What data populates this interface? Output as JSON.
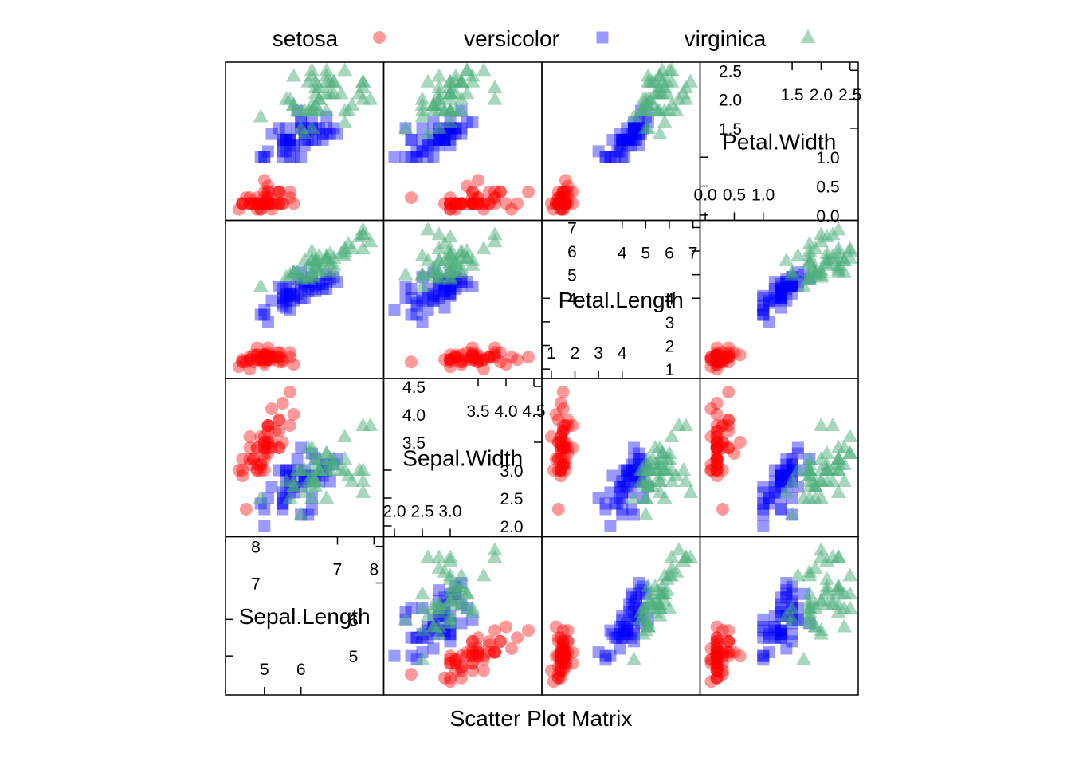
{
  "chart_data": {
    "type": "scatter",
    "subtype": "scatter-plot-matrix",
    "xlabel": "Scatter Plot Matrix",
    "variables": [
      "Sepal.Length",
      "Sepal.Width",
      "Petal.Length",
      "Petal.Width"
    ],
    "variable_ranges": {
      "Sepal.Length": [
        4.0,
        8.2
      ],
      "Sepal.Width": [
        1.85,
        4.6
      ],
      "Petal.Length": [
        0.7,
        7.2
      ],
      "Petal.Width": [
        -0.05,
        2.6
      ]
    },
    "diagonal_ticks": {
      "Sepal.Length": {
        "low": [
          5,
          6
        ],
        "high": [
          7,
          8
        ]
      },
      "Sepal.Width": {
        "low": [
          "2.0",
          "2.5",
          "3.0"
        ],
        "high": [
          "3.5",
          "4.0",
          "4.5"
        ]
      },
      "Petal.Length": {
        "low": [
          1,
          2,
          3,
          4
        ],
        "high": [
          4,
          5,
          6,
          7
        ]
      },
      "Petal.Width": {
        "low": [
          "0.0",
          "0.5",
          "1.0"
        ],
        "high": [
          "1.5",
          "2.0",
          "2.5"
        ]
      }
    },
    "legend_position": "top",
    "series": [
      {
        "name": "setosa",
        "marker": "circle",
        "color": "#ff0000",
        "opacity": 0.4,
        "points": [
          [
            5.1,
            3.5,
            1.4,
            0.2
          ],
          [
            4.9,
            3.0,
            1.4,
            0.2
          ],
          [
            4.7,
            3.2,
            1.3,
            0.2
          ],
          [
            4.6,
            3.1,
            1.5,
            0.2
          ],
          [
            5.0,
            3.6,
            1.4,
            0.2
          ],
          [
            5.4,
            3.9,
            1.7,
            0.4
          ],
          [
            4.6,
            3.4,
            1.4,
            0.3
          ],
          [
            5.0,
            3.4,
            1.5,
            0.2
          ],
          [
            4.4,
            2.9,
            1.4,
            0.2
          ],
          [
            4.9,
            3.1,
            1.5,
            0.1
          ],
          [
            5.4,
            3.7,
            1.5,
            0.2
          ],
          [
            4.8,
            3.4,
            1.6,
            0.2
          ],
          [
            4.8,
            3.0,
            1.4,
            0.1
          ],
          [
            4.3,
            3.0,
            1.1,
            0.1
          ],
          [
            5.8,
            4.0,
            1.2,
            0.2
          ],
          [
            5.7,
            4.4,
            1.5,
            0.4
          ],
          [
            5.4,
            3.9,
            1.3,
            0.4
          ],
          [
            5.1,
            3.5,
            1.4,
            0.3
          ],
          [
            5.7,
            3.8,
            1.7,
            0.3
          ],
          [
            5.1,
            3.8,
            1.5,
            0.3
          ],
          [
            5.4,
            3.4,
            1.7,
            0.2
          ],
          [
            5.1,
            3.7,
            1.5,
            0.4
          ],
          [
            4.6,
            3.6,
            1.0,
            0.2
          ],
          [
            5.1,
            3.3,
            1.7,
            0.5
          ],
          [
            4.8,
            3.4,
            1.9,
            0.2
          ],
          [
            5.0,
            3.0,
            1.6,
            0.2
          ],
          [
            5.0,
            3.4,
            1.6,
            0.4
          ],
          [
            5.2,
            3.5,
            1.5,
            0.2
          ],
          [
            5.2,
            3.4,
            1.4,
            0.2
          ],
          [
            4.7,
            3.2,
            1.6,
            0.2
          ],
          [
            4.8,
            3.1,
            1.6,
            0.2
          ],
          [
            5.4,
            3.4,
            1.5,
            0.4
          ],
          [
            5.2,
            4.1,
            1.5,
            0.1
          ],
          [
            5.5,
            4.2,
            1.4,
            0.2
          ],
          [
            4.9,
            3.1,
            1.5,
            0.2
          ],
          [
            5.0,
            3.2,
            1.2,
            0.2
          ],
          [
            5.5,
            3.5,
            1.3,
            0.2
          ],
          [
            4.9,
            3.6,
            1.4,
            0.1
          ],
          [
            4.4,
            3.0,
            1.3,
            0.2
          ],
          [
            5.1,
            3.4,
            1.5,
            0.2
          ],
          [
            5.0,
            3.5,
            1.3,
            0.3
          ],
          [
            4.5,
            2.3,
            1.3,
            0.3
          ],
          [
            4.4,
            3.2,
            1.3,
            0.2
          ],
          [
            5.0,
            3.5,
            1.6,
            0.6
          ],
          [
            5.1,
            3.8,
            1.9,
            0.4
          ],
          [
            4.8,
            3.0,
            1.4,
            0.3
          ],
          [
            5.1,
            3.8,
            1.6,
            0.2
          ],
          [
            4.6,
            3.2,
            1.4,
            0.2
          ],
          [
            5.3,
            3.7,
            1.5,
            0.2
          ],
          [
            5.0,
            3.3,
            1.4,
            0.2
          ]
        ]
      },
      {
        "name": "versicolor",
        "marker": "square",
        "color": "#0000ff",
        "opacity": 0.4,
        "points": [
          [
            7.0,
            3.2,
            4.7,
            1.4
          ],
          [
            6.4,
            3.2,
            4.5,
            1.5
          ],
          [
            6.9,
            3.1,
            4.9,
            1.5
          ],
          [
            5.5,
            2.3,
            4.0,
            1.3
          ],
          [
            6.5,
            2.8,
            4.6,
            1.5
          ],
          [
            5.7,
            2.8,
            4.5,
            1.3
          ],
          [
            6.3,
            3.3,
            4.7,
            1.6
          ],
          [
            4.9,
            2.4,
            3.3,
            1.0
          ],
          [
            6.6,
            2.9,
            4.6,
            1.3
          ],
          [
            5.2,
            2.7,
            3.9,
            1.4
          ],
          [
            5.0,
            2.0,
            3.5,
            1.0
          ],
          [
            5.9,
            3.0,
            4.2,
            1.5
          ],
          [
            6.0,
            2.2,
            4.0,
            1.0
          ],
          [
            6.1,
            2.9,
            4.7,
            1.4
          ],
          [
            5.6,
            2.9,
            3.6,
            1.3
          ],
          [
            6.7,
            3.1,
            4.4,
            1.4
          ],
          [
            5.6,
            3.0,
            4.5,
            1.5
          ],
          [
            5.8,
            2.7,
            4.1,
            1.0
          ],
          [
            6.2,
            2.2,
            4.5,
            1.5
          ],
          [
            5.6,
            2.5,
            3.9,
            1.1
          ],
          [
            5.9,
            3.2,
            4.8,
            1.8
          ],
          [
            6.1,
            2.8,
            4.0,
            1.3
          ],
          [
            6.3,
            2.5,
            4.9,
            1.5
          ],
          [
            6.1,
            2.8,
            4.7,
            1.2
          ],
          [
            6.4,
            2.9,
            4.3,
            1.3
          ],
          [
            6.6,
            3.0,
            4.4,
            1.4
          ],
          [
            6.8,
            2.8,
            4.8,
            1.4
          ],
          [
            6.7,
            3.0,
            5.0,
            1.7
          ],
          [
            6.0,
            2.9,
            4.5,
            1.5
          ],
          [
            5.7,
            2.6,
            3.5,
            1.0
          ],
          [
            5.5,
            2.4,
            3.8,
            1.1
          ],
          [
            5.5,
            2.4,
            3.7,
            1.0
          ],
          [
            5.8,
            2.7,
            3.9,
            1.2
          ],
          [
            6.0,
            2.7,
            5.1,
            1.6
          ],
          [
            5.4,
            3.0,
            4.5,
            1.5
          ],
          [
            6.0,
            3.4,
            4.5,
            1.6
          ],
          [
            6.7,
            3.1,
            4.7,
            1.5
          ],
          [
            6.3,
            2.3,
            4.4,
            1.3
          ],
          [
            5.6,
            3.0,
            4.1,
            1.3
          ],
          [
            5.5,
            2.5,
            4.0,
            1.3
          ],
          [
            5.5,
            2.6,
            4.4,
            1.2
          ],
          [
            6.1,
            3.0,
            4.6,
            1.4
          ],
          [
            5.8,
            2.6,
            4.0,
            1.2
          ],
          [
            5.0,
            2.3,
            3.3,
            1.0
          ],
          [
            5.6,
            2.7,
            4.2,
            1.3
          ],
          [
            5.7,
            3.0,
            4.2,
            1.2
          ],
          [
            5.7,
            2.9,
            4.2,
            1.3
          ],
          [
            6.2,
            2.9,
            4.3,
            1.3
          ],
          [
            5.1,
            2.5,
            3.0,
            1.1
          ],
          [
            5.7,
            2.8,
            4.1,
            1.3
          ]
        ]
      },
      {
        "name": "virginica",
        "marker": "triangle",
        "color": "#4daf7c",
        "opacity": 0.5,
        "points": [
          [
            6.3,
            3.3,
            6.0,
            2.5
          ],
          [
            5.8,
            2.7,
            5.1,
            1.9
          ],
          [
            7.1,
            3.0,
            5.9,
            2.1
          ],
          [
            6.3,
            2.9,
            5.6,
            1.8
          ],
          [
            6.5,
            3.0,
            5.8,
            2.2
          ],
          [
            7.6,
            3.0,
            6.6,
            2.1
          ],
          [
            4.9,
            2.5,
            4.5,
            1.7
          ],
          [
            7.3,
            2.9,
            6.3,
            1.8
          ],
          [
            6.7,
            2.5,
            5.8,
            1.8
          ],
          [
            7.2,
            3.6,
            6.1,
            2.5
          ],
          [
            6.5,
            3.2,
            5.1,
            2.0
          ],
          [
            6.4,
            2.7,
            5.3,
            1.9
          ],
          [
            6.8,
            3.0,
            5.5,
            2.1
          ],
          [
            5.7,
            2.5,
            5.0,
            2.0
          ],
          [
            5.8,
            2.8,
            5.1,
            2.4
          ],
          [
            6.4,
            3.2,
            5.3,
            2.3
          ],
          [
            6.5,
            3.0,
            5.5,
            1.8
          ],
          [
            7.7,
            3.8,
            6.7,
            2.2
          ],
          [
            7.7,
            2.6,
            6.9,
            2.3
          ],
          [
            6.0,
            2.2,
            5.0,
            1.5
          ],
          [
            6.9,
            3.2,
            5.7,
            2.3
          ],
          [
            5.6,
            2.8,
            4.9,
            2.0
          ],
          [
            7.7,
            2.8,
            6.7,
            2.0
          ],
          [
            6.3,
            2.7,
            4.9,
            1.8
          ],
          [
            6.7,
            3.3,
            5.7,
            2.1
          ],
          [
            7.2,
            3.2,
            6.0,
            1.8
          ],
          [
            6.2,
            2.8,
            4.8,
            1.8
          ],
          [
            6.1,
            3.0,
            4.9,
            1.8
          ],
          [
            6.4,
            2.8,
            5.6,
            2.1
          ],
          [
            7.2,
            3.0,
            5.8,
            1.6
          ],
          [
            7.4,
            2.8,
            6.1,
            1.9
          ],
          [
            7.9,
            3.8,
            6.4,
            2.0
          ],
          [
            6.4,
            2.8,
            5.6,
            2.2
          ],
          [
            6.3,
            2.8,
            5.1,
            1.5
          ],
          [
            6.1,
            2.6,
            5.6,
            1.4
          ],
          [
            7.7,
            3.0,
            6.1,
            2.3
          ],
          [
            6.3,
            3.4,
            5.6,
            2.4
          ],
          [
            6.4,
            3.1,
            5.5,
            1.8
          ],
          [
            6.0,
            3.0,
            4.8,
            1.8
          ],
          [
            6.9,
            3.1,
            5.4,
            2.1
          ],
          [
            6.7,
            3.1,
            5.6,
            2.4
          ],
          [
            6.9,
            3.1,
            5.1,
            2.3
          ],
          [
            5.8,
            2.7,
            5.1,
            1.9
          ],
          [
            6.8,
            3.2,
            5.9,
            2.3
          ],
          [
            6.7,
            3.3,
            5.7,
            2.5
          ],
          [
            6.7,
            3.0,
            5.2,
            2.3
          ],
          [
            6.3,
            2.5,
            5.0,
            1.9
          ],
          [
            6.5,
            3.0,
            5.2,
            2.0
          ],
          [
            6.2,
            3.4,
            5.4,
            2.3
          ],
          [
            5.9,
            3.0,
            5.1,
            1.8
          ]
        ]
      }
    ]
  }
}
